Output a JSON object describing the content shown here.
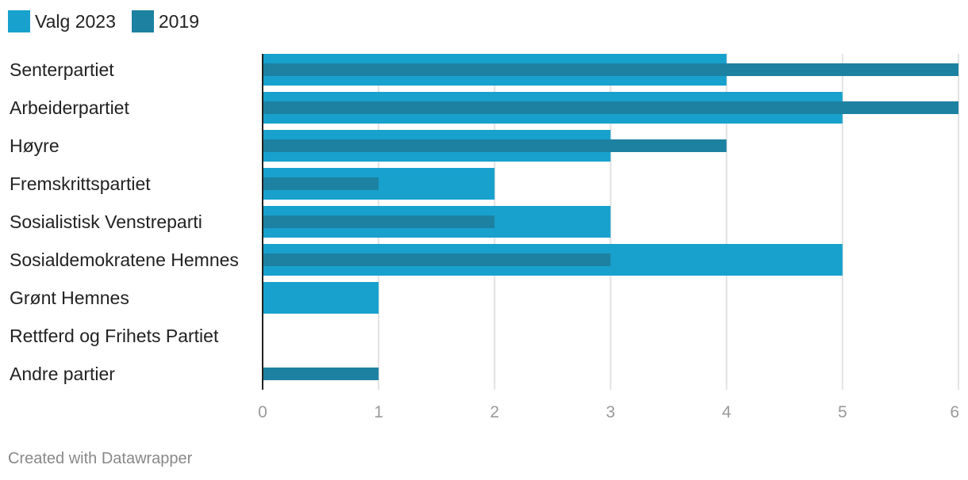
{
  "chart_data": {
    "type": "bar",
    "orientation": "horizontal",
    "categories": [
      "Senterpartiet",
      "Arbeiderpartiet",
      "Høyre",
      "Fremskrittspartiet",
      "Sosialistisk Venstreparti",
      "Sosialdemokratene Hemnes",
      "Grønt Hemnes",
      "Rettferd og Frihets Partiet",
      "Andre partier"
    ],
    "series": [
      {
        "name": "Valg 2023",
        "color": "#18a1cd",
        "values": [
          4,
          5,
          3,
          2,
          3,
          5,
          1,
          0,
          0
        ]
      },
      {
        "name": "2019",
        "color": "#1d81a2",
        "values": [
          6,
          6,
          4,
          1,
          2,
          3,
          0,
          0,
          1
        ]
      }
    ],
    "xlim": [
      0,
      6
    ],
    "xticks": [
      "0",
      "1",
      "2",
      "3",
      "4",
      "5",
      "6"
    ],
    "grid": true,
    "legend": "top-left"
  },
  "footer": {
    "credit": "Created with Datawrapper"
  }
}
